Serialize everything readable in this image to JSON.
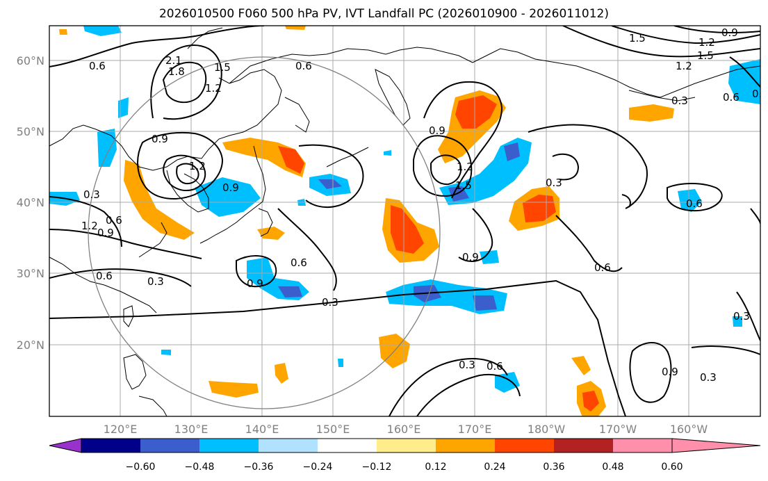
{
  "title": "2026010500 F060 500 hPa PV, IVT Landfall PC (2026010900 - 2026011012)",
  "lat_labels": [
    "60°N",
    "50°N",
    "40°N",
    "30°N",
    "20°N"
  ],
  "lon_labels": [
    "120°E",
    "130°E",
    "140°E",
    "150°E",
    "160°E",
    "170°E",
    "180°W",
    "170°W",
    "160°W"
  ],
  "contour_labels": [
    "0.6",
    "2.1",
    "1.8",
    "1.5",
    "1.2",
    "0.6",
    "1.5",
    "1.2",
    "0.9",
    "0.9",
    "1.5",
    "1.2",
    "0.3",
    "0.6",
    "0.9",
    "1.2",
    "0.9",
    "1.2",
    "1.5",
    "1.2",
    "0.9",
    "0.3",
    "0.6",
    "0.3",
    "0.3",
    "0.6",
    "0.9",
    "0.9",
    "0.3",
    "0.3",
    "0.6",
    "0.6",
    "0.9",
    "0.3",
    "0.3",
    "0.6",
    "0.3",
    "0.6"
  ],
  "colorbar": {
    "ticks": [
      "−0.60",
      "−0.48",
      "−0.36",
      "−0.24",
      "−0.12",
      "0.12",
      "0.24",
      "0.36",
      "0.48",
      "0.60"
    ],
    "colors": [
      "#9932cc",
      "#00008b",
      "#3a5fcd",
      "#00bfff",
      "#b0e2ff",
      "#ffffff",
      "#ffec8b",
      "#ffa500",
      "#ff4500",
      "#b22222",
      "#ff8fab"
    ]
  }
}
